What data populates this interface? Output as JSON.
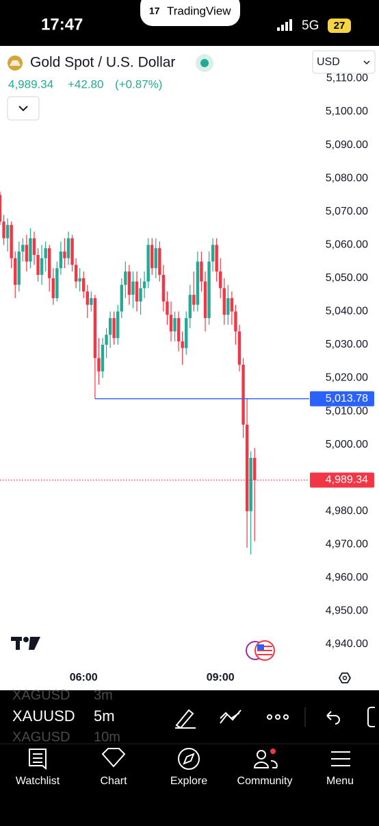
{
  "status_bar": {
    "time": "17:47",
    "app": "TradingView",
    "network": "5G",
    "battery": "27"
  },
  "header": {
    "symbol_name": "Gold Spot / U.S. Dollar",
    "price": "4,989.34",
    "change": "+42.80",
    "change_pct": "(+0.87%)",
    "currency": "USD"
  },
  "chart_data": {
    "type": "candlestick",
    "up_color": "#22ab94",
    "down_color": "#f23645",
    "open": [
      5075,
      5067,
      5062,
      5066,
      5056,
      5048,
      5058,
      5060,
      5055,
      5062,
      5057,
      5051,
      5056,
      5059,
      5050,
      5044,
      5053,
      5058,
      5056,
      5062,
      5054,
      5049,
      5050,
      5046,
      5042,
      5044,
      5026,
      5022,
      5030,
      5033,
      5038,
      5032,
      5040,
      5048,
      5052,
      5045,
      5049,
      5043,
      5047,
      5049,
      5060,
      5053,
      5059,
      5051,
      5043,
      5039,
      5034,
      5038,
      5031,
      5029,
      5038,
      5045,
      5042,
      5055,
      5049,
      5038,
      5055,
      5060,
      5052,
      5047,
      5039,
      5044,
      5040,
      5034,
      5024,
      5006,
      4980,
      4996
    ],
    "high": [
      5076,
      5069,
      5068,
      5067,
      5058,
      5061,
      5062,
      5063,
      5065,
      5064,
      5059,
      5060,
      5061,
      5060,
      5053,
      5055,
      5061,
      5062,
      5064,
      5063,
      5056,
      5053,
      5052,
      5048,
      5046,
      5045,
      5032,
      5032,
      5035,
      5040,
      5040,
      5042,
      5050,
      5055,
      5054,
      5052,
      5052,
      5050,
      5052,
      5062,
      5062,
      5062,
      5061,
      5054,
      5046,
      5043,
      5040,
      5040,
      5034,
      5040,
      5048,
      5052,
      5058,
      5058,
      5052,
      5058,
      5062,
      5062,
      5056,
      5050,
      5048,
      5046,
      5042,
      5036,
      5026,
      5014,
      4998,
      4999
    ],
    "low": [
      5066,
      5060,
      5058,
      5053,
      5044,
      5046,
      5055,
      5052,
      5053,
      5054,
      5049,
      5048,
      5052,
      5046,
      5042,
      5043,
      5051,
      5053,
      5054,
      5052,
      5047,
      5046,
      5044,
      5038,
      5040,
      5013.78,
      5018,
      5020,
      5026,
      5029,
      5030,
      5030,
      5038,
      5044,
      5042,
      5041,
      5040,
      5039,
      5044,
      5047,
      5051,
      5050,
      5049,
      5040,
      5036,
      5031,
      5031,
      5028,
      5024,
      5027,
      5035,
      5040,
      5040,
      5046,
      5034,
      5036,
      5052,
      5049,
      5044,
      5036,
      5036,
      5036,
      5030,
      5022,
      5002,
      4969,
      4967,
      4971
    ],
    "close": [
      5067,
      5062,
      5066,
      5056,
      5048,
      5058,
      5060,
      5055,
      5062,
      5057,
      5051,
      5056,
      5059,
      5050,
      5044,
      5053,
      5058,
      5056,
      5062,
      5054,
      5049,
      5050,
      5046,
      5042,
      5044,
      5026,
      5022,
      5030,
      5033,
      5038,
      5032,
      5040,
      5048,
      5052,
      5045,
      5049,
      5043,
      5047,
      5049,
      5060,
      5053,
      5059,
      5051,
      5043,
      5039,
      5034,
      5038,
      5031,
      5029,
      5038,
      5045,
      5042,
      5055,
      5049,
      5038,
      5055,
      5060,
      5052,
      5047,
      5039,
      5044,
      5040,
      5034,
      5024,
      5006,
      4980,
      4996,
      4989.34
    ],
    "ylim": [
      4934.85,
      5119.77
    ],
    "yticks": [
      {
        "value": 4940,
        "label": "4,940.00"
      },
      {
        "value": 4950,
        "label": "4,950.00"
      },
      {
        "value": 4960,
        "label": "4,960.00"
      },
      {
        "value": 4970,
        "label": "4,970.00"
      },
      {
        "value": 4980,
        "label": "4,980.00"
      },
      {
        "value": 4990,
        "label": "4,990.00"
      },
      {
        "value": 5000,
        "label": "5,000.00"
      },
      {
        "value": 5010,
        "label": "5,010.00"
      },
      {
        "value": 5020,
        "label": "5,020.00"
      },
      {
        "value": 5030,
        "label": "5,030.00"
      },
      {
        "value": 5040,
        "label": "5,040.00"
      },
      {
        "value": 5050,
        "label": "5,050.00"
      },
      {
        "value": 5060,
        "label": "5,060.00"
      },
      {
        "value": 5070,
        "label": "5,070.00"
      },
      {
        "value": 5080,
        "label": "5,080.00"
      },
      {
        "value": 5090,
        "label": "5,090.00"
      },
      {
        "value": 5100,
        "label": "5,100.00"
      },
      {
        "value": 5110,
        "label": "5,110.00"
      }
    ],
    "xlim": [
      0,
      90
    ],
    "xticks": [
      {
        "value": 22,
        "label": "06:00"
      },
      {
        "value": 58,
        "label": "09:00"
      }
    ],
    "price_lines": [
      {
        "value": 5013.78,
        "label": "5,013.78",
        "color": "#2962ff",
        "style": "solid"
      },
      {
        "value": 4989.34,
        "label": "4,989.34",
        "color": "#f23645",
        "style": "dotted"
      }
    ]
  },
  "toolbar": {
    "symbol_above": "XAGUSD",
    "interval_above": "3m",
    "symbol": "XAUUSD",
    "interval": "5m",
    "symbol_below": "XAGUSD",
    "interval_below": "10m"
  },
  "nav": [
    "Watchlist",
    "Chart",
    "Explore",
    "Community",
    "Menu"
  ]
}
